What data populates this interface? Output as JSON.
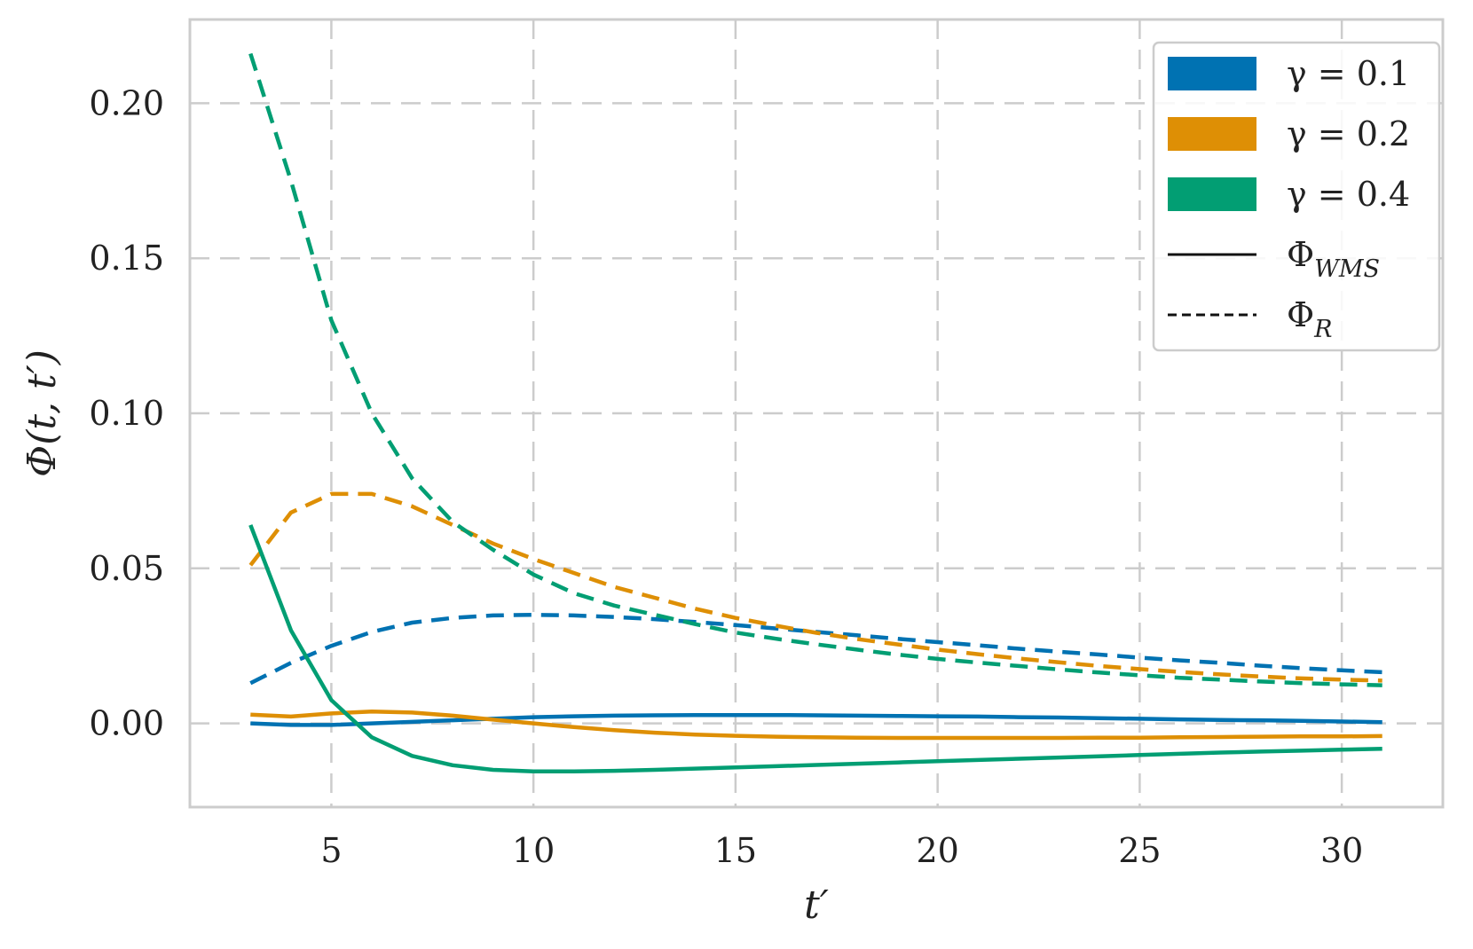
{
  "chart_data": {
    "type": "line",
    "xlabel": "t′",
    "ylabel": "Φ(t, t′)",
    "xlim": [
      1.5,
      32.5
    ],
    "ylim": [
      -0.027,
      0.227
    ],
    "xticks": [
      5,
      10,
      15,
      20,
      25,
      30
    ],
    "xtick_labels": [
      "5",
      "10",
      "15",
      "20",
      "25",
      "30"
    ],
    "yticks": [
      0.0,
      0.05,
      0.1,
      0.15,
      0.2
    ],
    "ytick_labels": [
      "0.00",
      "0.05",
      "0.10",
      "0.15",
      "0.20"
    ],
    "grid": true,
    "legend_position": "top-right",
    "x": [
      3,
      4,
      5,
      6,
      7,
      8,
      9,
      10,
      11,
      12,
      13,
      14,
      15,
      16,
      17,
      18,
      19,
      20,
      21,
      22,
      23,
      24,
      25,
      26,
      27,
      28,
      29,
      30,
      31
    ],
    "series": [
      {
        "gamma": "0.1",
        "kind": "WMS",
        "color": "#0072b2",
        "dash": "solid",
        "values": [
          0.0,
          -0.0005,
          -0.0005,
          0.0,
          0.0005,
          0.001,
          0.0015,
          0.002,
          0.0023,
          0.0025,
          0.0026,
          0.0027,
          0.0027,
          0.0027,
          0.0026,
          0.0025,
          0.0024,
          0.0023,
          0.0022,
          0.002,
          0.0019,
          0.0017,
          0.0015,
          0.0013,
          0.0011,
          0.001,
          0.0008,
          0.0006,
          0.0004
        ]
      },
      {
        "gamma": "0.1",
        "kind": "R",
        "color": "#0072b2",
        "dash": "dashed",
        "values": [
          0.013,
          0.0195,
          0.025,
          0.0295,
          0.0325,
          0.034,
          0.0348,
          0.035,
          0.0348,
          0.0343,
          0.0336,
          0.0327,
          0.0317,
          0.0306,
          0.0295,
          0.0284,
          0.0273,
          0.0262,
          0.0252,
          0.0241,
          0.0231,
          0.0222,
          0.0212,
          0.0203,
          0.0195,
          0.0186,
          0.0178,
          0.0171,
          0.0165
        ]
      },
      {
        "gamma": "0.2",
        "kind": "WMS",
        "color": "#de8f05",
        "dash": "solid",
        "values": [
          0.0028,
          0.0022,
          0.0032,
          0.0038,
          0.0035,
          0.0025,
          0.0012,
          0.0,
          -0.0012,
          -0.0022,
          -0.003,
          -0.0036,
          -0.004,
          -0.0043,
          -0.0045,
          -0.0046,
          -0.0047,
          -0.0047,
          -0.0047,
          -0.0047,
          -0.0047,
          -0.0046,
          -0.0046,
          -0.0045,
          -0.0044,
          -0.0043,
          -0.0042,
          -0.0042,
          -0.0041
        ]
      },
      {
        "gamma": "0.2",
        "kind": "R",
        "color": "#de8f05",
        "dash": "dashed",
        "values": [
          0.051,
          0.068,
          0.074,
          0.074,
          0.07,
          0.064,
          0.058,
          0.053,
          0.0485,
          0.044,
          0.0405,
          0.037,
          0.034,
          0.0315,
          0.0292,
          0.0272,
          0.0255,
          0.0238,
          0.0223,
          0.0209,
          0.0197,
          0.0185,
          0.0175,
          0.0166,
          0.0158,
          0.0151,
          0.0145,
          0.0141,
          0.0138
        ]
      },
      {
        "gamma": "0.4",
        "kind": "WMS",
        "color": "#029e73",
        "dash": "solid",
        "values": [
          0.064,
          0.03,
          0.0075,
          -0.0045,
          -0.0105,
          -0.0135,
          -0.015,
          -0.0155,
          -0.0155,
          -0.0153,
          -0.015,
          -0.0146,
          -0.0142,
          -0.0138,
          -0.0134,
          -0.013,
          -0.0126,
          -0.0122,
          -0.0118,
          -0.0114,
          -0.011,
          -0.0106,
          -0.0102,
          -0.0098,
          -0.0094,
          -0.0091,
          -0.0088,
          -0.0085,
          -0.0082
        ]
      },
      {
        "gamma": "0.4",
        "kind": "R",
        "color": "#029e73",
        "dash": "dashed",
        "values": [
          0.216,
          0.175,
          0.13,
          0.1,
          0.079,
          0.065,
          0.056,
          0.048,
          0.042,
          0.038,
          0.035,
          0.032,
          0.0293,
          0.0273,
          0.0255,
          0.0238,
          0.0222,
          0.0208,
          0.0196,
          0.0185,
          0.0174,
          0.0164,
          0.0155,
          0.0147,
          0.0141,
          0.0135,
          0.013,
          0.0126,
          0.0123
        ]
      }
    ],
    "legend": [
      {
        "label": "γ = 0.1",
        "color": "#0072b2",
        "kind": "patch"
      },
      {
        "label": "γ = 0.2",
        "color": "#de8f05",
        "kind": "patch"
      },
      {
        "label": "γ = 0.4",
        "color": "#029e73",
        "kind": "patch"
      },
      {
        "label": "Φ",
        "sub": "WMS",
        "color": "#111111",
        "kind": "solid-line"
      },
      {
        "label": "Φ",
        "sub": "R",
        "color": "#111111",
        "kind": "dashed-line"
      }
    ]
  }
}
